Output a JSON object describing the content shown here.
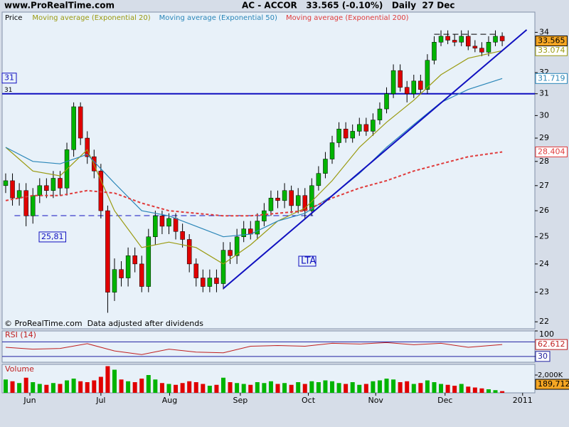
{
  "chart_data": [
    {
      "type": "candlestick",
      "source": "www.ProRealTime.com",
      "title": "AC - ACCOR   33.565 (-0.10%)   Daily  27 Dec",
      "footnote": "© ProRealTime.com  Data adjusted after dividends",
      "legend_label": "Price",
      "log": true,
      "ylim": [
        21.77,
        35.05
      ],
      "yticks": [
        22,
        23,
        24,
        25,
        26,
        27,
        28,
        29,
        30,
        31,
        32,
        34
      ],
      "up_color": "#00b400",
      "down_color": "#e00000",
      "open": [
        27.0,
        27.2,
        26.5,
        26.8,
        25.8,
        26.6,
        27.0,
        26.8,
        27.3,
        26.9,
        28.5,
        30.4,
        29.0,
        28.2,
        27.6,
        26.0,
        23.0,
        23.8,
        23.5,
        24.3,
        24.0,
        23.2,
        25.0,
        25.8,
        25.4,
        25.7,
        25.2,
        24.9,
        24.0,
        23.5,
        23.2,
        23.5,
        23.3,
        24.5,
        24.3,
        25.0,
        25.3,
        25.1,
        25.6,
        26.0,
        26.5,
        26.4,
        26.8,
        26.2,
        26.6,
        26.0,
        27.0,
        27.5,
        28.1,
        28.8,
        29.4,
        29.0,
        29.3,
        29.6,
        29.3,
        29.8,
        30.3,
        31.0,
        32.1,
        31.3,
        31.0,
        31.6,
        31.2,
        32.6,
        33.5,
        33.8,
        33.6,
        33.5,
        33.8,
        33.3,
        33.2,
        33.0,
        33.5,
        33.8
      ],
      "high": [
        27.5,
        27.5,
        27.1,
        27.1,
        26.9,
        27.3,
        27.3,
        27.6,
        27.6,
        28.8,
        30.6,
        30.6,
        29.3,
        28.5,
        27.9,
        26.2,
        24.2,
        24.1,
        24.6,
        24.6,
        24.3,
        25.3,
        26.0,
        26.0,
        25.9,
        25.9,
        25.5,
        25.1,
        24.2,
        23.8,
        23.8,
        23.8,
        24.8,
        24.8,
        25.3,
        25.6,
        25.6,
        25.9,
        26.3,
        26.8,
        26.8,
        27.1,
        27.0,
        26.9,
        26.9,
        27.3,
        27.8,
        28.4,
        29.1,
        29.7,
        29.7,
        29.6,
        29.9,
        29.9,
        30.1,
        30.6,
        31.3,
        32.4,
        32.4,
        31.6,
        31.9,
        31.9,
        32.9,
        33.8,
        34.1,
        34.1,
        33.9,
        34.1,
        34.1,
        33.6,
        33.5,
        33.8,
        34.1,
        34.0
      ],
      "low": [
        26.7,
        26.2,
        26.2,
        25.4,
        25.5,
        26.3,
        26.5,
        26.5,
        26.6,
        26.6,
        28.2,
        28.7,
        27.9,
        27.3,
        25.7,
        22.3,
        22.7,
        23.2,
        23.2,
        23.7,
        23.0,
        23.0,
        24.7,
        25.1,
        25.1,
        24.9,
        24.6,
        23.7,
        23.2,
        23.0,
        23.0,
        23.0,
        23.1,
        24.0,
        24.0,
        24.8,
        24.9,
        24.9,
        25.4,
        25.8,
        26.1,
        26.1,
        25.9,
        25.9,
        25.7,
        25.8,
        26.8,
        27.3,
        27.9,
        28.6,
        28.8,
        28.8,
        29.1,
        29.1,
        29.1,
        29.6,
        30.1,
        30.8,
        31.1,
        30.6,
        30.8,
        31.0,
        31.0,
        32.4,
        33.3,
        33.4,
        33.3,
        33.3,
        33.1,
        33.0,
        32.8,
        32.8,
        33.3,
        33.3
      ],
      "close": [
        27.2,
        26.5,
        26.8,
        25.8,
        26.6,
        27.0,
        26.8,
        27.3,
        26.9,
        28.5,
        30.4,
        29.0,
        28.2,
        27.6,
        26.0,
        23.0,
        23.8,
        23.5,
        24.3,
        24.0,
        23.2,
        25.0,
        25.8,
        25.4,
        25.7,
        25.2,
        24.9,
        24.0,
        23.5,
        23.2,
        23.5,
        23.3,
        24.5,
        24.3,
        25.0,
        25.3,
        25.1,
        25.6,
        26.0,
        26.5,
        26.4,
        26.8,
        26.2,
        26.6,
        26.0,
        27.0,
        27.5,
        28.1,
        28.8,
        29.4,
        29.0,
        29.3,
        29.6,
        29.3,
        29.8,
        30.3,
        31.0,
        32.1,
        31.3,
        31.0,
        31.6,
        31.2,
        32.6,
        33.5,
        33.8,
        33.6,
        33.5,
        33.8,
        33.3,
        33.2,
        33.0,
        33.5,
        33.8,
        33.565
      ],
      "series": [
        {
          "name": "Moving average (Exponential 20)",
          "color": "#9a9a10",
          "x": [
            0,
            4,
            8,
            12,
            16,
            20,
            24,
            28,
            32,
            36,
            40,
            44,
            48,
            52,
            56,
            60,
            64,
            68,
            73
          ],
          "values": [
            28.6,
            27.6,
            27.4,
            28.5,
            26.0,
            24.6,
            24.8,
            24.6,
            24.0,
            24.7,
            25.6,
            26.1,
            27.2,
            28.6,
            29.7,
            30.7,
            31.9,
            32.7,
            33.074
          ]
        },
        {
          "name": "Moving average (Exponential 50)",
          "color": "#2a86b8",
          "x": [
            0,
            4,
            8,
            12,
            16,
            20,
            24,
            28,
            32,
            36,
            40,
            44,
            48,
            52,
            56,
            60,
            64,
            68,
            73
          ],
          "values": [
            28.6,
            28.0,
            27.9,
            28.3,
            27.1,
            26.0,
            25.8,
            25.4,
            25.0,
            25.1,
            25.6,
            25.9,
            26.6,
            27.5,
            28.6,
            29.6,
            30.6,
            31.2,
            31.719
          ]
        },
        {
          "name": "Moving average (Exponential 200)",
          "color": "#e03a3a",
          "dashed": true,
          "x": [
            0,
            4,
            8,
            12,
            16,
            20,
            24,
            28,
            32,
            36,
            40,
            44,
            48,
            52,
            56,
            60,
            64,
            68,
            73
          ],
          "values": [
            26.4,
            26.6,
            26.6,
            26.8,
            26.7,
            26.3,
            26.0,
            25.9,
            25.8,
            25.8,
            25.9,
            26.0,
            26.5,
            26.9,
            27.2,
            27.6,
            27.9,
            28.2,
            28.404
          ]
        }
      ],
      "hlines": [
        {
          "value": 31,
          "label": "31",
          "color": "#1010c0"
        }
      ],
      "levels": [
        {
          "value": 25.81,
          "label": "25,81",
          "x": [
            1.3,
            45.2
          ],
          "color": "#1010c0"
        },
        {
          "value": 33.9,
          "x": [
            63,
            72
          ],
          "color": "#000000"
        }
      ],
      "trendlines": [
        {
          "label": "LTA",
          "x": [
            32,
            76.6
          ],
          "values": [
            23.13,
            34.13
          ],
          "color": "#1010c0"
        }
      ]
    },
    {
      "type": "line",
      "title": "RSI (14)",
      "color": "#c02020",
      "ylim": [
        14,
        100
      ],
      "yticks": [
        30,
        100
      ],
      "levels": [
        30,
        70
      ],
      "x": [
        0,
        4,
        8,
        12,
        16,
        20,
        24,
        28,
        32,
        36,
        40,
        44,
        48,
        52,
        56,
        60,
        64,
        68,
        73
      ],
      "values": [
        55,
        50,
        52,
        65,
        45,
        35,
        50,
        42,
        40,
        58,
        60,
        58,
        66,
        64,
        68,
        62,
        66,
        55,
        62.612
      ]
    },
    {
      "type": "bar",
      "title": "Volume",
      "ylim": [
        0,
        3200000
      ],
      "yticks": [
        {
          "value": 2000000,
          "label": "2,000K"
        }
      ],
      "xlim": [
        -0.52,
        77.8
      ],
      "xticks": [
        {
          "value": 3.56,
          "label": "Jun"
        },
        {
          "value": 14.0,
          "label": "Jul"
        },
        {
          "value": 24.1,
          "label": "Aug"
        },
        {
          "value": 34.5,
          "label": "Sep"
        },
        {
          "value": 44.5,
          "label": "Oct"
        },
        {
          "value": 54.4,
          "label": "Nov"
        },
        {
          "value": 64.6,
          "label": "Dec"
        },
        {
          "value": 76.0,
          "label": "2011"
        }
      ],
      "values": [
        1500000,
        1300000,
        1100000,
        1700000,
        1200000,
        1000000,
        900000,
        1100000,
        1000000,
        1400000,
        1600000,
        1300000,
        1200000,
        1400000,
        1800000,
        3000000,
        2600000,
        1500000,
        1300000,
        1200000,
        1600000,
        2000000,
        1500000,
        1100000,
        1000000,
        900000,
        1100000,
        1300000,
        1200000,
        1000000,
        800000,
        900000,
        1700000,
        1200000,
        1100000,
        1000000,
        900000,
        1200000,
        1100000,
        1300000,
        1000000,
        1100000,
        900000,
        1200000,
        1000000,
        1300000,
        1200000,
        1400000,
        1300000,
        1100000,
        1000000,
        1200000,
        900000,
        1000000,
        1300000,
        1400000,
        1600000,
        1500000,
        1200000,
        1300000,
        1000000,
        1100000,
        1400000,
        1200000,
        1000000,
        900000,
        800000,
        1000000,
        700000,
        600000,
        500000,
        400000,
        300000,
        189712
      ],
      "value_labels": [
        null,
        null,
        null,
        null,
        null,
        null,
        null,
        null,
        null,
        null,
        null,
        null,
        null,
        null,
        null,
        null,
        null,
        null,
        null,
        null,
        null,
        null,
        null,
        null,
        null,
        null,
        null,
        null,
        null,
        null,
        null,
        null,
        null,
        null,
        null,
        null,
        null,
        null,
        null,
        null,
        null,
        null,
        null,
        null,
        null,
        null,
        null,
        null,
        null,
        null,
        null,
        null,
        null,
        null,
        null,
        null,
        null,
        null,
        null,
        null,
        null,
        null,
        null,
        null,
        null,
        null,
        null,
        null,
        null,
        null,
        null,
        null,
        null,
        "189,712"
      ]
    }
  ]
}
